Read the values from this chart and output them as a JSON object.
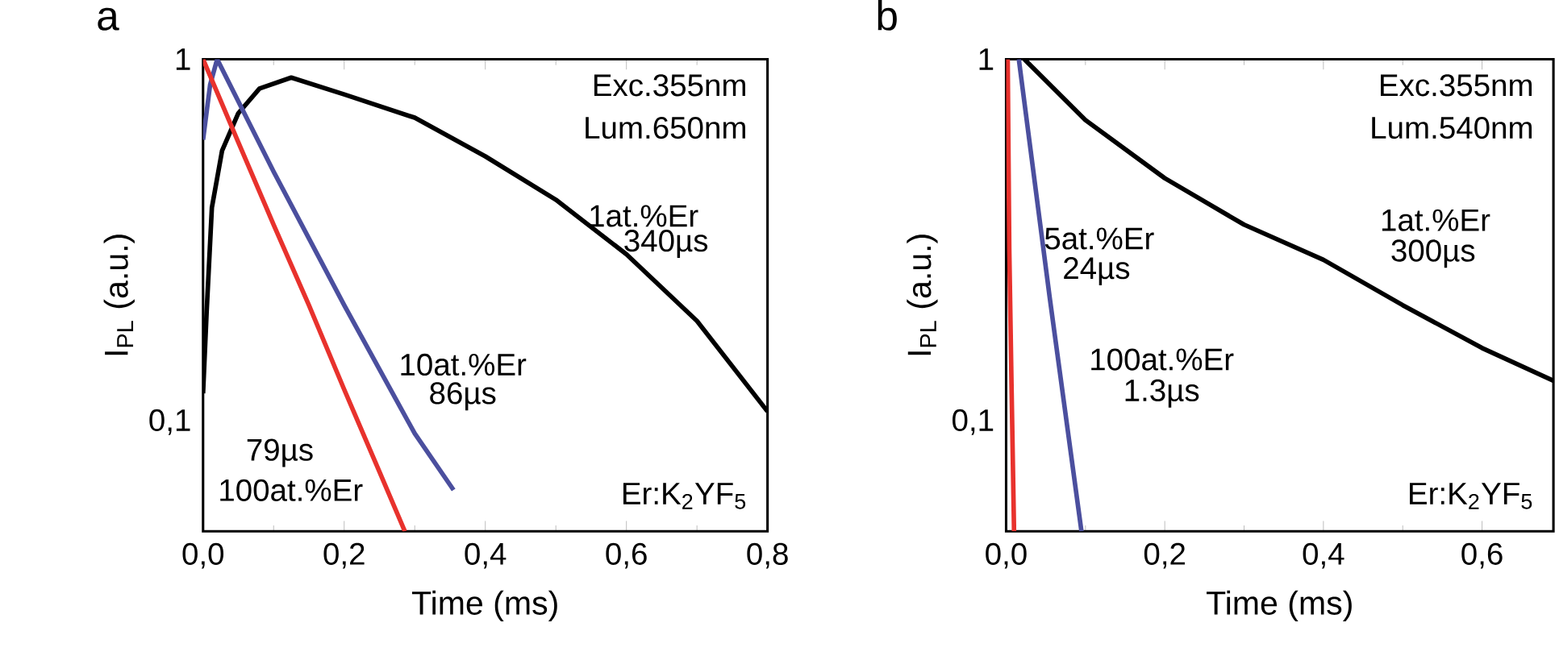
{
  "chart_data": [
    {
      "type": "line",
      "title": "a",
      "xlabel": "Time (ms)",
      "ylabel": "I$_{PL}$ (a.u.)",
      "log": "y",
      "xlim": [
        0,
        0.8
      ],
      "ylim": [
        0.05,
        1
      ],
      "xticks": [
        {
          "value": 0,
          "label": "0,0"
        },
        {
          "value": 0.2,
          "label": "0,2"
        },
        {
          "value": 0.4,
          "label": "0,4"
        },
        {
          "value": 0.6,
          "label": "0,6"
        },
        {
          "value": 0.8,
          "label": "0,8"
        }
      ],
      "yticks": [
        {
          "value": 0.1,
          "label": "0,1"
        },
        1
      ],
      "series": [
        {
          "color": "#000000",
          "x": [
            0,
            0.005,
            0.0125,
            0.027,
            0.05,
            0.08,
            0.125,
            0.2,
            0.3,
            0.4,
            0.5,
            0.6,
            0.7,
            0.8
          ],
          "values": [
            0.12,
            0.2,
            0.39,
            0.56,
            0.71,
            0.83,
            0.89,
            0.8,
            0.69,
            0.54,
            0.41,
            0.29,
            0.19,
            0.107
          ]
        },
        {
          "color": "#4b4f9e",
          "x": [
            0,
            0.01,
            0.02,
            0.1,
            0.2,
            0.3,
            0.355
          ],
          "values": [
            0.6,
            0.85,
            1,
            0.49,
            0.21,
            0.093,
            0.065
          ]
        },
        {
          "color": "#e8322d",
          "x": [
            0,
            0.05,
            0.1,
            0.15,
            0.2,
            0.25,
            0.286
          ],
          "values": [
            1,
            0.59,
            0.35,
            0.21,
            0.123,
            0.073,
            0.05
          ]
        }
      ],
      "annotations": [
        "Exc.355nm",
        "Lum.650nm",
        "Er:K$_{2}$YF$_{5}$",
        "1at.%Er",
        "340µs",
        "10at.%Er",
        "86µs",
        "79µs",
        "100at.%Er"
      ]
    },
    {
      "type": "line",
      "title": "b",
      "xlabel": "Time (ms)",
      "ylabel": "I$_{PL}$ (a.u.)",
      "log": "y",
      "xlim": [
        0,
        0.69
      ],
      "ylim": [
        0.05,
        1
      ],
      "xticks": [
        {
          "value": 0,
          "label": "0,0"
        },
        {
          "value": 0.2,
          "label": "0,2"
        },
        {
          "value": 0.4,
          "label": "0,4"
        },
        {
          "value": 0.6,
          "label": "0,6"
        }
      ],
      "yticks": [
        {
          "value": 0.1,
          "label": "0,1"
        },
        1
      ],
      "series": [
        {
          "color": "#000000",
          "x": [
            0.023,
            0.1,
            0.2,
            0.3,
            0.4,
            0.5,
            0.6,
            0.69
          ],
          "values": [
            1,
            0.68,
            0.47,
            0.35,
            0.28,
            0.21,
            0.16,
            0.13
          ]
        },
        {
          "color": "#4b4f9e",
          "x": [
            0.016,
            0.055,
            0.095
          ],
          "values": [
            1,
            0.22,
            0.05
          ]
        },
        {
          "color": "#e8322d",
          "x": [
            0.002,
            0.004,
            0.007,
            0.01
          ],
          "values": [
            1,
            0.3,
            0.12,
            0.05
          ]
        }
      ],
      "annotations": [
        "Exc.355nm",
        "Lum.540nm",
        "Er:K$_{2}$YF$_{5}$",
        "5at.%Er",
        "24µs",
        "1at.%Er",
        "300µs",
        "100at.%Er",
        "1.3µs"
      ]
    }
  ]
}
